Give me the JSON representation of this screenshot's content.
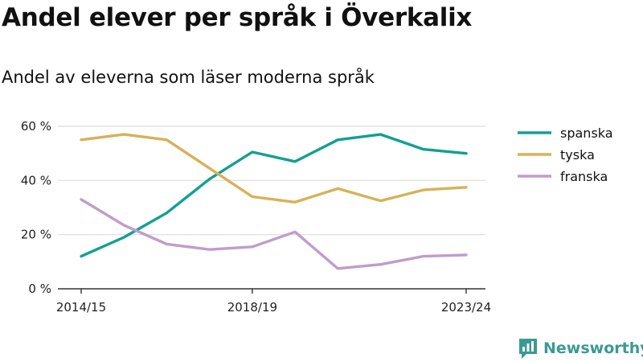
{
  "header": {
    "title": "Andel elever per språk i Överkalix",
    "subtitle": "Andel av eleverna som läser moderna språk"
  },
  "brand": {
    "name": "Newsworthy",
    "color": "#3a9a93",
    "icon": "bar-chart-speech-bubble-icon"
  },
  "chart_data": {
    "type": "line",
    "x": [
      "2014/15",
      "2015/16",
      "2016/17",
      "2017/18",
      "2018/19",
      "2019/20",
      "2020/21",
      "2021/22",
      "2022/23",
      "2023/24"
    ],
    "x_tick_labels": [
      "2014/15",
      "2018/19",
      "2023/24"
    ],
    "y_ticks": [
      "0 %",
      "20 %",
      "40 %",
      "60 %"
    ],
    "ylim": [
      0,
      60
    ],
    "grid": true,
    "legend": "right",
    "series": [
      {
        "name": "spanska",
        "color": "#12a092",
        "values": [
          12,
          19,
          28,
          40.5,
          50.5,
          47,
          55,
          57,
          51.5,
          50
        ]
      },
      {
        "name": "tyska",
        "color": "#d8b158",
        "values": [
          55,
          57,
          55,
          44.5,
          34,
          32,
          37,
          32.5,
          36.5,
          37.5
        ]
      },
      {
        "name": "franska",
        "color": "#c09ccb",
        "values": [
          33,
          23.5,
          16.5,
          14.5,
          15.5,
          21,
          7.5,
          9,
          12,
          12.5
        ]
      }
    ]
  }
}
